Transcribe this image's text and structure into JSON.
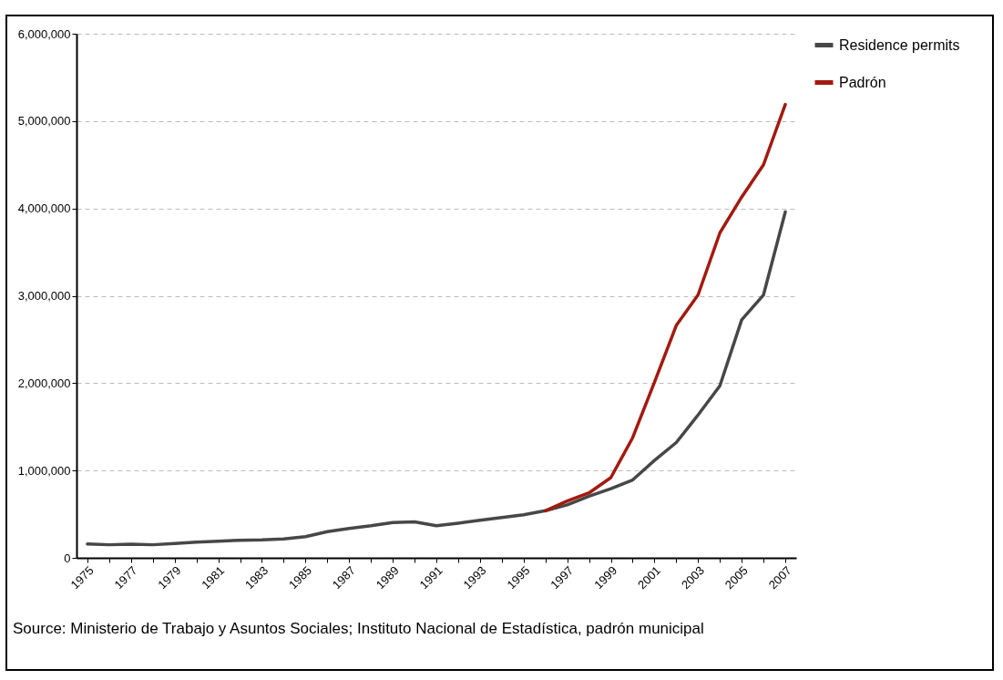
{
  "chart_data": {
    "type": "line",
    "categories": [
      "1975",
      null,
      "1977",
      null,
      "1979",
      null,
      "1981",
      null,
      "1983",
      null,
      "1985",
      null,
      "1987",
      null,
      "1989",
      null,
      "1991",
      null,
      "1993",
      null,
      "1995",
      null,
      "1997",
      null,
      "1999",
      null,
      "2001",
      null,
      "2003",
      null,
      "2005",
      null,
      "2007"
    ],
    "series": [
      {
        "name": "Residence permits",
        "color": "#474747",
        "values": [
          158000,
          150000,
          157000,
          150000,
          165000,
          180000,
          191000,
          202000,
          206000,
          217000,
          243000,
          300000,
          337000,
          367000,
          404000,
          412000,
          367000,
          397000,
          431000,
          461000,
          494000,
          539000,
          606000,
          706000,
          792000,
          892000,
          1115000,
          1320000,
          1636000,
          1970000,
          2725000,
          3010000,
          3960000
        ]
      },
      {
        "name": "Padrón",
        "color": "#a31a0e",
        "values": [
          null,
          null,
          null,
          null,
          null,
          null,
          null,
          null,
          null,
          null,
          null,
          null,
          null,
          null,
          null,
          null,
          null,
          null,
          null,
          null,
          null,
          539000,
          651000,
          744000,
          918000,
          1375000,
          2010000,
          2660000,
          3010000,
          3720000,
          4130000,
          4500000,
          5190000
        ]
      }
    ],
    "ylim": [
      0,
      6000000
    ],
    "yticks": [
      {
        "value": 0,
        "label": "0"
      },
      {
        "value": 1000000,
        "label": "1,000,000"
      },
      {
        "value": 2000000,
        "label": "2,000,000"
      },
      {
        "value": 3000000,
        "label": "3,000,000"
      },
      {
        "value": 4000000,
        "label": "4,000,000"
      },
      {
        "value": 5000000,
        "label": "5,000,000"
      },
      {
        "value": 6000000,
        "label": "6,000,000"
      }
    ],
    "grid": "y",
    "legend": "right",
    "marker": "none",
    "line_style": "solid",
    "annotations": [
      "Source: Ministerio de Trabajo y Asuntos Sociales; Instituto Nacional de Estadística, padrón municipal"
    ]
  }
}
